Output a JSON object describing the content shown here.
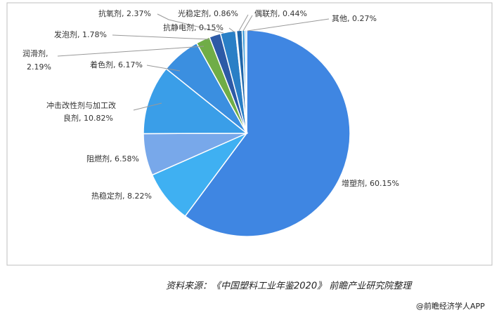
{
  "chart_data": {
    "type": "pie",
    "categories": [
      "增塑剂",
      "热稳定剂",
      "阻燃剂",
      "冲击改性剂与加工改良剂",
      "着色剂",
      "润滑剂",
      "发泡剂",
      "抗氧剂",
      "抗静电剂",
      "光稳定剂",
      "偶联剂",
      "其他"
    ],
    "values": [
      60.15,
      8.22,
      6.58,
      10.82,
      6.17,
      2.19,
      1.78,
      2.37,
      0.15,
      0.86,
      0.44,
      0.27
    ],
    "value_labels": [
      [
        "增塑剂, 60.15%"
      ],
      [
        "热稳定剂, 8.22%"
      ],
      [
        "阻燃剂, 6.58%"
      ],
      [
        "冲击改性剂与加工改",
        "良剂, 10.82%"
      ],
      [
        "着色剂, 6.17%"
      ],
      [
        "润滑剂,",
        "2.19%"
      ],
      [
        "发泡剂, 1.78%"
      ],
      [
        "抗氧剂, 2.37%"
      ],
      [
        "抗静电剂, 0.15%"
      ],
      [
        "光稳定剂, 0.86%"
      ],
      [
        "偶联剂, 0.44%"
      ],
      [
        "其他, 0.27%"
      ]
    ],
    "colors": [
      "#3f86e2",
      "#3fb0f2",
      "#78a8ea",
      "#3a9ee8",
      "#3b8fe0",
      "#70ad47",
      "#2d5aa6",
      "#2a7fc6",
      "#1f4e8a",
      "#1f66aa",
      "#3d9ad8",
      "#9fc3e6"
    ],
    "source": "资料来源：《中国塑料工业年鉴2020》 前瞻产业研究院整理",
    "credit": "@前瞻经济学人APP"
  }
}
